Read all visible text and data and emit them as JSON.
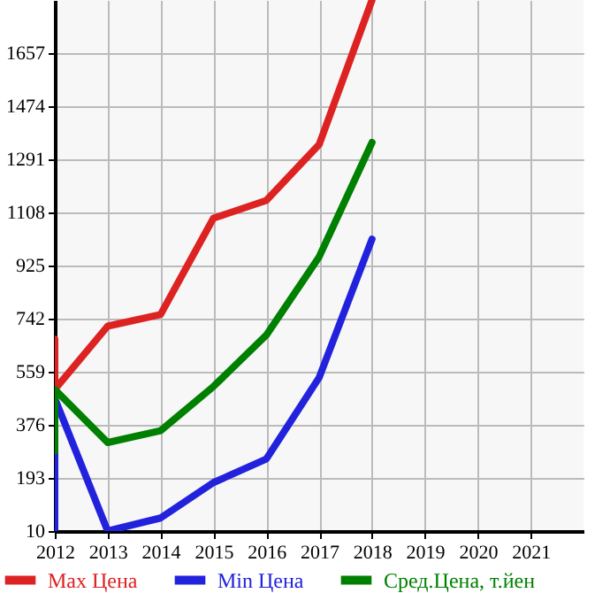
{
  "chart_data": {
    "type": "line",
    "xlim": [
      2012,
      2022
    ],
    "xticks": [
      2012,
      2013,
      2014,
      2015,
      2016,
      2017,
      2018,
      2019,
      2020,
      2021
    ],
    "ylim": [
      10,
      1840
    ],
    "yticks": [
      10,
      193,
      376,
      559,
      742,
      925,
      1108,
      1291,
      1474,
      1657
    ],
    "grid": true,
    "legend": "bottom",
    "line_style": "solid",
    "marker": "none",
    "series": [
      {
        "name": "Max Цена",
        "color": "#dd2222",
        "x": [
          2012,
          2012,
          2013,
          2014,
          2015,
          2016,
          2017,
          2018
        ],
        "values": [
          671,
          498,
          716,
          756,
          1088,
          1149,
          1342,
          1840
        ]
      },
      {
        "name": "Min Цена",
        "color": "#2222dd",
        "x": [
          2012,
          2012,
          2013,
          2014,
          2015,
          2016,
          2017,
          2018
        ],
        "values": [
          10,
          467,
          10,
          55,
          177,
          258,
          539,
          1016
        ]
      },
      {
        "name": "Сред.Цена, т.йен",
        "color": "#008000",
        "x": [
          2012,
          2012,
          2013,
          2014,
          2015,
          2016,
          2017,
          2018
        ],
        "values": [
          285,
          498,
          315,
          356,
          508,
          685,
          955,
          1349
        ]
      }
    ]
  }
}
